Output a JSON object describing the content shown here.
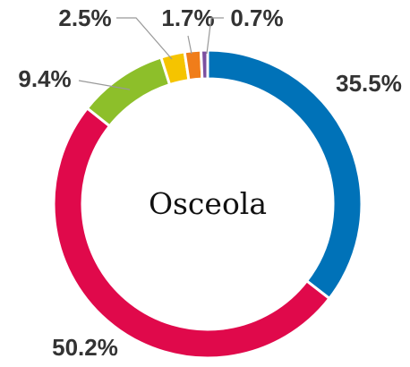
{
  "chart_data": {
    "type": "donut",
    "title": "Osceola",
    "values": [
      35.5,
      50.2,
      9.4,
      2.5,
      1.7,
      0.7
    ],
    "value_labels": [
      "35.5%",
      "50.2%",
      "9.4%",
      "2.5%",
      "1.7%",
      "0.7%"
    ],
    "colors": [
      "#0072b8",
      "#e0094b",
      "#8dbf2a",
      "#f5c400",
      "#f07d1a",
      "#7b4fa0"
    ]
  }
}
